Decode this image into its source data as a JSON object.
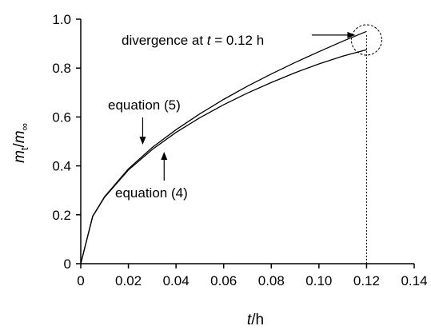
{
  "chart_data": {
    "type": "line",
    "xlabel": {
      "italic": "t",
      "rest": "/h"
    },
    "ylabel": {
      "m": "m",
      "t_sub": "t",
      "slash": "/",
      "m2": "m",
      "inf_sub": "∞"
    },
    "xlim": [
      0,
      0.14
    ],
    "ylim": [
      0,
      1.0
    ],
    "x_ticks": [
      0,
      0.02,
      0.04,
      0.06,
      0.08,
      0.1,
      0.12,
      0.14
    ],
    "x_tick_labels": [
      "0",
      "0.02",
      "0.04",
      "0.06",
      "0.08",
      "0.10",
      "0.12",
      "0.14"
    ],
    "y_ticks": [
      0,
      0.2,
      0.4,
      0.6,
      0.8,
      1.0
    ],
    "y_tick_labels": [
      "0",
      "0.2",
      "0.4",
      "0.6",
      "0.8",
      "1.0"
    ],
    "grid": false,
    "series": [
      {
        "name": "equation (5)",
        "x": [
          0,
          0.005,
          0.01,
          0.02,
          0.03,
          0.04,
          0.05,
          0.06,
          0.07,
          0.08,
          0.09,
          0.1,
          0.11,
          0.12
        ],
        "y": [
          0,
          0.194,
          0.274,
          0.388,
          0.475,
          0.548,
          0.613,
          0.672,
          0.726,
          0.776,
          0.823,
          0.867,
          0.91,
          0.95
        ]
      },
      {
        "name": "equation (4)",
        "x": [
          0,
          0.005,
          0.01,
          0.02,
          0.03,
          0.04,
          0.05,
          0.06,
          0.07,
          0.08,
          0.09,
          0.1,
          0.11,
          0.12
        ],
        "y": [
          0,
          0.193,
          0.272,
          0.383,
          0.467,
          0.537,
          0.597,
          0.65,
          0.698,
          0.741,
          0.781,
          0.817,
          0.849,
          0.875
        ]
      }
    ],
    "vertical_line": {
      "x": 0.12,
      "style": "dotted"
    },
    "annotations": [
      {
        "name": "divergence",
        "text_before": "divergence at ",
        "italic": "t",
        "text_after": " = 0.12 h",
        "anchor_x": 0.12,
        "anchor_y": 0.915
      },
      {
        "name": "equation-5",
        "text": "equation (5)",
        "arrow": "down",
        "point_x": 0.026,
        "point_y": 0.48
      },
      {
        "name": "equation-4",
        "text": "equation (4)",
        "arrow": "up",
        "point_x": 0.035,
        "point_y": 0.45
      }
    ]
  }
}
